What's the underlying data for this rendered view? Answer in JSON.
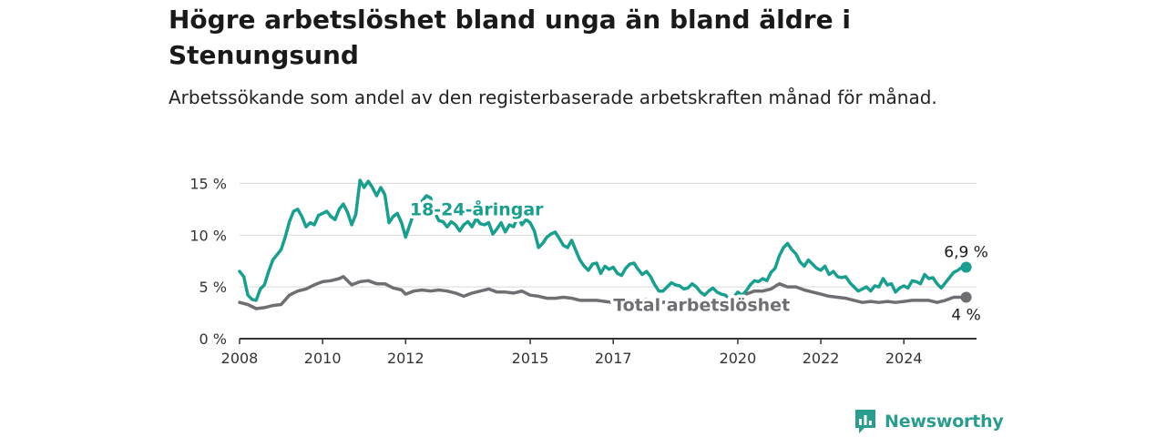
{
  "title": "Högre arbetslöshet bland unga än bland äldre i Stenungsund",
  "subtitle": "Arbetssökande som andel av den registerbaserade arbetskraften månad för månad.",
  "brand": {
    "name": "Newsworthy",
    "icon": "newsworthy-logo-icon",
    "color": "#2a9d8f"
  },
  "colors": {
    "youth": "#1a9e8f",
    "total": "#6f6e72",
    "grid": "#d9d9d9",
    "axis": "#333333"
  },
  "chart_data": {
    "type": "line",
    "title": "Högre arbetslöshet bland unga än bland äldre i Stenungsund",
    "subtitle": "Arbetssökande som andel av den registerbaserade arbetskraften månad för månad.",
    "x_ticks": [
      "2008",
      "2010",
      "2012",
      "2015",
      "2017",
      "2020",
      "2022",
      "2024"
    ],
    "y_ticks": [
      "0 %",
      "5 %",
      "10 %",
      "15 %"
    ],
    "xlim": [
      2008,
      2025.75
    ],
    "ylim": [
      0,
      16
    ],
    "grid": true,
    "series": [
      {
        "name": "18-24-åringar",
        "color": "#1a9e8f",
        "end_label": "6,9 %",
        "points": [
          [
            2008.0,
            6.5
          ],
          [
            2008.1,
            6.0
          ],
          [
            2008.2,
            4.2
          ],
          [
            2008.3,
            3.8
          ],
          [
            2008.4,
            3.7
          ],
          [
            2008.5,
            4.8
          ],
          [
            2008.6,
            5.2
          ],
          [
            2008.7,
            6.5
          ],
          [
            2008.8,
            7.6
          ],
          [
            2008.9,
            8.1
          ],
          [
            2009.0,
            8.6
          ],
          [
            2009.1,
            9.8
          ],
          [
            2009.2,
            11.3
          ],
          [
            2009.3,
            12.3
          ],
          [
            2009.4,
            12.5
          ],
          [
            2009.5,
            11.8
          ],
          [
            2009.6,
            10.8
          ],
          [
            2009.7,
            11.2
          ],
          [
            2009.8,
            11.0
          ],
          [
            2009.9,
            11.9
          ],
          [
            2010.0,
            12.1
          ],
          [
            2010.1,
            12.3
          ],
          [
            2010.2,
            11.8
          ],
          [
            2010.3,
            11.5
          ],
          [
            2010.4,
            12.5
          ],
          [
            2010.5,
            13.0
          ],
          [
            2010.6,
            12.2
          ],
          [
            2010.7,
            11.0
          ],
          [
            2010.8,
            12.0
          ],
          [
            2010.9,
            15.3
          ],
          [
            2011.0,
            14.6
          ],
          [
            2011.1,
            15.2
          ],
          [
            2011.2,
            14.6
          ],
          [
            2011.3,
            13.8
          ],
          [
            2011.4,
            14.6
          ],
          [
            2011.5,
            13.9
          ],
          [
            2011.6,
            11.2
          ],
          [
            2011.7,
            11.8
          ],
          [
            2011.8,
            12.1
          ],
          [
            2011.9,
            11.2
          ],
          [
            2012.0,
            9.8
          ],
          [
            2012.1,
            11.0
          ],
          [
            2012.2,
            12.2
          ],
          [
            2012.3,
            12.6
          ],
          [
            2012.4,
            13.3
          ],
          [
            2012.5,
            13.8
          ],
          [
            2012.6,
            13.6
          ],
          [
            2012.7,
            12.2
          ],
          [
            2012.8,
            11.4
          ],
          [
            2012.9,
            11.3
          ],
          [
            2013.0,
            10.8
          ],
          [
            2013.1,
            11.3
          ],
          [
            2013.2,
            11.0
          ],
          [
            2013.3,
            10.4
          ],
          [
            2013.4,
            11.0
          ],
          [
            2013.5,
            11.3
          ],
          [
            2013.6,
            10.8
          ],
          [
            2013.7,
            11.6
          ],
          [
            2013.8,
            11.1
          ],
          [
            2013.9,
            11.0
          ],
          [
            2014.0,
            11.2
          ],
          [
            2014.1,
            10.1
          ],
          [
            2014.2,
            10.6
          ],
          [
            2014.3,
            11.2
          ],
          [
            2014.4,
            10.3
          ],
          [
            2014.5,
            11.0
          ],
          [
            2014.6,
            10.8
          ],
          [
            2014.7,
            11.8
          ],
          [
            2014.8,
            11.0
          ],
          [
            2014.9,
            11.5
          ],
          [
            2015.0,
            11.2
          ],
          [
            2015.1,
            10.4
          ],
          [
            2015.2,
            8.8
          ],
          [
            2015.3,
            9.2
          ],
          [
            2015.4,
            9.8
          ],
          [
            2015.5,
            10.1
          ],
          [
            2015.6,
            10.3
          ],
          [
            2015.7,
            9.7
          ],
          [
            2015.8,
            9.0
          ],
          [
            2015.9,
            8.8
          ],
          [
            2016.0,
            9.5
          ],
          [
            2016.1,
            8.5
          ],
          [
            2016.2,
            7.6
          ],
          [
            2016.3,
            7.0
          ],
          [
            2016.4,
            6.6
          ],
          [
            2016.5,
            7.2
          ],
          [
            2016.6,
            7.3
          ],
          [
            2016.7,
            6.3
          ],
          [
            2016.8,
            7.0
          ],
          [
            2016.9,
            6.7
          ],
          [
            2017.0,
            6.9
          ],
          [
            2017.1,
            6.3
          ],
          [
            2017.2,
            6.1
          ],
          [
            2017.3,
            6.8
          ],
          [
            2017.4,
            7.2
          ],
          [
            2017.5,
            7.3
          ],
          [
            2017.6,
            6.7
          ],
          [
            2017.7,
            6.2
          ],
          [
            2017.8,
            6.5
          ],
          [
            2017.9,
            6.0
          ],
          [
            2018.0,
            5.2
          ],
          [
            2018.1,
            4.6
          ],
          [
            2018.2,
            4.6
          ],
          [
            2018.3,
            5.0
          ],
          [
            2018.4,
            5.4
          ],
          [
            2018.5,
            5.2
          ],
          [
            2018.6,
            5.1
          ],
          [
            2018.7,
            4.8
          ],
          [
            2018.8,
            4.9
          ],
          [
            2018.9,
            5.3
          ],
          [
            2019.0,
            5.0
          ],
          [
            2019.1,
            4.5
          ],
          [
            2019.2,
            4.2
          ],
          [
            2019.3,
            4.6
          ],
          [
            2019.4,
            4.9
          ],
          [
            2019.5,
            4.5
          ],
          [
            2019.6,
            4.3
          ],
          [
            2019.7,
            4.2
          ],
          [
            2019.8,
            3.8
          ],
          [
            2019.9,
            4.0
          ],
          [
            2020.0,
            4.5
          ],
          [
            2020.1,
            4.2
          ],
          [
            2020.2,
            4.6
          ],
          [
            2020.3,
            5.2
          ],
          [
            2020.4,
            5.6
          ],
          [
            2020.5,
            5.5
          ],
          [
            2020.6,
            5.8
          ],
          [
            2020.7,
            5.6
          ],
          [
            2020.8,
            6.4
          ],
          [
            2020.9,
            6.8
          ],
          [
            2021.0,
            8.0
          ],
          [
            2021.1,
            8.8
          ],
          [
            2021.2,
            9.2
          ],
          [
            2021.3,
            8.6
          ],
          [
            2021.4,
            8.2
          ],
          [
            2021.5,
            7.4
          ],
          [
            2021.6,
            7.0
          ],
          [
            2021.7,
            7.6
          ],
          [
            2021.8,
            7.2
          ],
          [
            2021.9,
            6.8
          ],
          [
            2022.0,
            6.6
          ],
          [
            2022.1,
            7.0
          ],
          [
            2022.2,
            6.2
          ],
          [
            2022.3,
            6.5
          ],
          [
            2022.4,
            6.0
          ],
          [
            2022.5,
            5.9
          ],
          [
            2022.6,
            6.0
          ],
          [
            2022.7,
            5.4
          ],
          [
            2022.8,
            5.0
          ],
          [
            2022.9,
            4.6
          ],
          [
            2023.0,
            4.8
          ],
          [
            2023.1,
            5.0
          ],
          [
            2023.2,
            4.6
          ],
          [
            2023.3,
            5.1
          ],
          [
            2023.4,
            5.0
          ],
          [
            2023.5,
            5.8
          ],
          [
            2023.6,
            5.2
          ],
          [
            2023.7,
            5.3
          ],
          [
            2023.8,
            4.5
          ],
          [
            2023.9,
            4.9
          ],
          [
            2024.0,
            5.1
          ],
          [
            2024.1,
            4.9
          ],
          [
            2024.2,
            5.6
          ],
          [
            2024.3,
            5.5
          ],
          [
            2024.4,
            5.3
          ],
          [
            2024.5,
            6.2
          ],
          [
            2024.6,
            5.8
          ],
          [
            2024.7,
            5.9
          ],
          [
            2024.8,
            5.3
          ],
          [
            2024.9,
            4.9
          ],
          [
            2025.0,
            5.4
          ],
          [
            2025.1,
            5.9
          ],
          [
            2025.2,
            6.4
          ],
          [
            2025.3,
            6.6
          ],
          [
            2025.4,
            6.9
          ],
          [
            2025.5,
            6.9
          ]
        ]
      },
      {
        "name": "Total arbetslöshet",
        "color": "#6f6e72",
        "end_label": "4 %",
        "points": [
          [
            2008.0,
            3.5
          ],
          [
            2008.2,
            3.3
          ],
          [
            2008.4,
            2.9
          ],
          [
            2008.6,
            3.0
          ],
          [
            2008.8,
            3.2
          ],
          [
            2009.0,
            3.3
          ],
          [
            2009.2,
            4.2
          ],
          [
            2009.4,
            4.6
          ],
          [
            2009.6,
            4.8
          ],
          [
            2009.8,
            5.2
          ],
          [
            2010.0,
            5.5
          ],
          [
            2010.2,
            5.6
          ],
          [
            2010.4,
            5.8
          ],
          [
            2010.5,
            6.0
          ],
          [
            2010.7,
            5.2
          ],
          [
            2010.9,
            5.5
          ],
          [
            2011.1,
            5.6
          ],
          [
            2011.3,
            5.3
          ],
          [
            2011.5,
            5.3
          ],
          [
            2011.7,
            4.9
          ],
          [
            2011.9,
            4.7
          ],
          [
            2012.0,
            4.3
          ],
          [
            2012.2,
            4.6
          ],
          [
            2012.4,
            4.7
          ],
          [
            2012.6,
            4.6
          ],
          [
            2012.8,
            4.7
          ],
          [
            2013.0,
            4.6
          ],
          [
            2013.2,
            4.4
          ],
          [
            2013.4,
            4.1
          ],
          [
            2013.6,
            4.4
          ],
          [
            2013.8,
            4.6
          ],
          [
            2014.0,
            4.8
          ],
          [
            2014.2,
            4.5
          ],
          [
            2014.4,
            4.5
          ],
          [
            2014.6,
            4.4
          ],
          [
            2014.8,
            4.6
          ],
          [
            2015.0,
            4.2
          ],
          [
            2015.2,
            4.1
          ],
          [
            2015.4,
            3.9
          ],
          [
            2015.6,
            3.9
          ],
          [
            2015.8,
            4.0
          ],
          [
            2016.0,
            3.9
          ],
          [
            2016.2,
            3.7
          ],
          [
            2016.4,
            3.7
          ],
          [
            2016.6,
            3.7
          ],
          [
            2016.8,
            3.6
          ],
          [
            2017.0,
            3.5
          ],
          [
            2017.2,
            3.5
          ],
          [
            2017.4,
            3.4
          ],
          [
            2017.6,
            3.6
          ],
          [
            2017.8,
            3.8
          ],
          [
            2018.0,
            3.5
          ],
          [
            2018.2,
            3.5
          ],
          [
            2018.4,
            3.7
          ],
          [
            2018.6,
            3.6
          ],
          [
            2018.8,
            3.5
          ],
          [
            2019.0,
            3.5
          ],
          [
            2019.2,
            3.5
          ],
          [
            2019.4,
            3.6
          ],
          [
            2019.6,
            3.7
          ],
          [
            2019.8,
            3.8
          ],
          [
            2020.0,
            4.0
          ],
          [
            2020.2,
            4.3
          ],
          [
            2020.4,
            4.6
          ],
          [
            2020.6,
            4.6
          ],
          [
            2020.8,
            4.8
          ],
          [
            2021.0,
            5.3
          ],
          [
            2021.2,
            5.0
          ],
          [
            2021.4,
            5.0
          ],
          [
            2021.6,
            4.7
          ],
          [
            2021.8,
            4.5
          ],
          [
            2022.0,
            4.3
          ],
          [
            2022.2,
            4.1
          ],
          [
            2022.4,
            4.0
          ],
          [
            2022.6,
            3.9
          ],
          [
            2022.8,
            3.7
          ],
          [
            2023.0,
            3.5
          ],
          [
            2023.2,
            3.6
          ],
          [
            2023.4,
            3.5
          ],
          [
            2023.6,
            3.6
          ],
          [
            2023.8,
            3.5
          ],
          [
            2024.0,
            3.6
          ],
          [
            2024.2,
            3.7
          ],
          [
            2024.4,
            3.7
          ],
          [
            2024.6,
            3.7
          ],
          [
            2024.8,
            3.5
          ],
          [
            2025.0,
            3.7
          ],
          [
            2025.2,
            4.0
          ],
          [
            2025.4,
            4.0
          ],
          [
            2025.5,
            4.0
          ]
        ]
      }
    ]
  }
}
